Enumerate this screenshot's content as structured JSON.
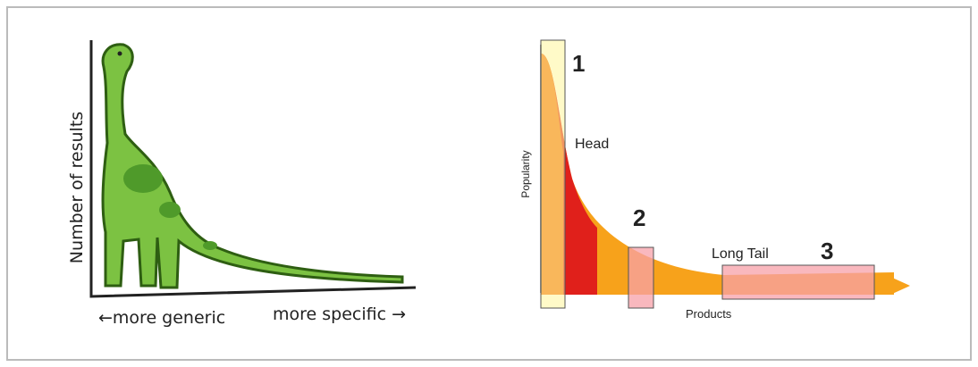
{
  "left": {
    "y_label": "Number of results",
    "x_left": "←more generic",
    "x_right": "more specific →"
  },
  "right": {
    "y_label": "Popularity",
    "x_label": "Products",
    "head": "Head",
    "long_tail": "Long Tail",
    "markers": [
      "1",
      "2",
      "3"
    ]
  }
}
